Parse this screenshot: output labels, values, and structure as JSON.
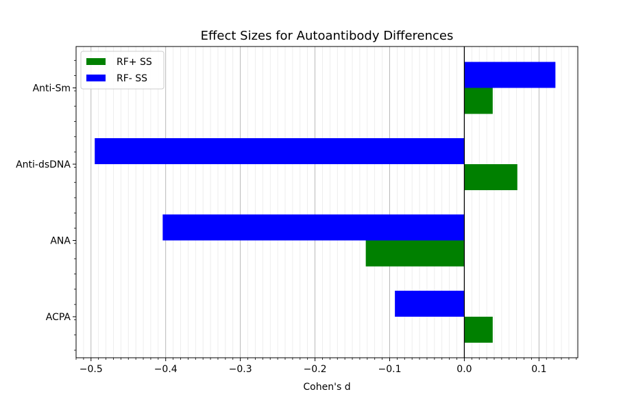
{
  "chart_data": {
    "type": "bar",
    "orientation": "horizontal",
    "title": "Effect Sizes for Autoantibody Differences",
    "xlabel": "Cohen's d",
    "ylabel": "",
    "categories": [
      "ACPA",
      "ANA",
      "Anti-dsDNA",
      "Anti-Sm"
    ],
    "series": [
      {
        "name": "RF+ SS",
        "color": "#008000",
        "values": [
          0.038,
          -0.132,
          0.071,
          0.038
        ]
      },
      {
        "name": "RF- SS",
        "color": "#0000ff",
        "values": [
          -0.093,
          -0.404,
          -0.495,
          0.122
        ]
      }
    ],
    "xlim": [
      -0.52,
      0.152
    ],
    "xticks": [
      -0.5,
      -0.4,
      -0.3,
      -0.2,
      -0.1,
      0.0,
      0.1
    ],
    "xtick_labels": [
      "−0.5",
      "−0.4",
      "−0.3",
      "−0.2",
      "−0.1",
      "0.0",
      "0.1"
    ],
    "grid": "x",
    "legend_position": "upper-left"
  }
}
